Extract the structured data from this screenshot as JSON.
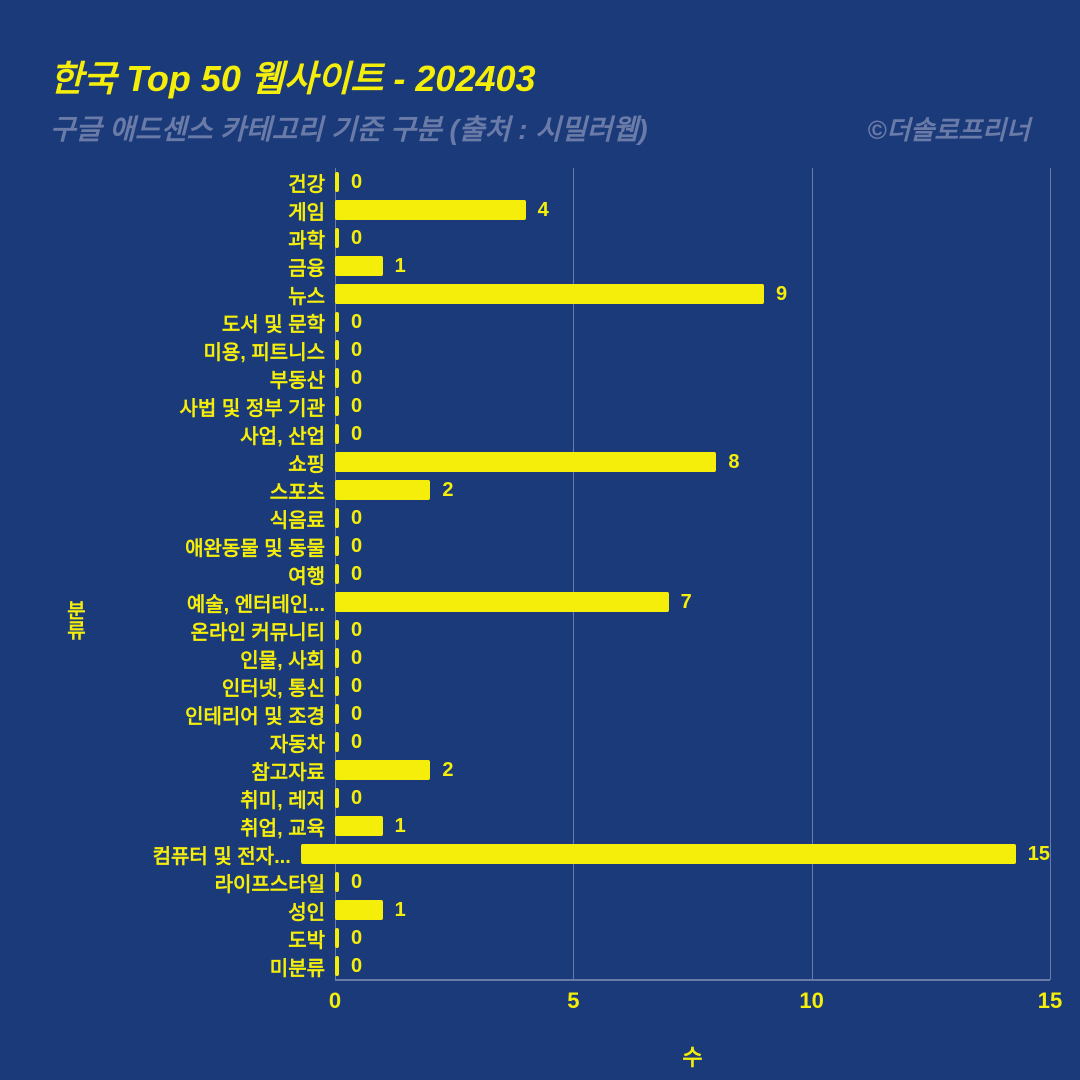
{
  "colors": {
    "background": "#1a3a7a",
    "bar": "#f5ed0a",
    "text_main": "#f5ed0a",
    "text_muted": "#6b7ba8",
    "grid": "#6b7ba8",
    "axis_line": "#6b7ba8"
  },
  "title": "한국 Top 50 웹사이트 - 202403",
  "subtitle": "구글 애드센스 카테고리 기준 구분 (출처 : 시밀러웹)",
  "credit": "©더솔로프리너",
  "chart": {
    "type": "bar-horizontal",
    "y_axis_title": "분류",
    "x_axis_title": "수",
    "xlim": [
      0,
      15
    ],
    "xticks": [
      0,
      5,
      10,
      15
    ],
    "bar_color": "#f5ed0a",
    "value_label_color": "#f5ed0a",
    "category_label_color": "#f5ed0a",
    "axis_label_color": "#f5ed0a",
    "grid_color": "#6b7ba8",
    "label_fontsize": 20,
    "value_fontsize": 20,
    "categories": [
      {
        "label": "건강",
        "value": 0
      },
      {
        "label": "게임",
        "value": 4
      },
      {
        "label": "과학",
        "value": 0
      },
      {
        "label": "금융",
        "value": 1
      },
      {
        "label": "뉴스",
        "value": 9
      },
      {
        "label": "도서 및 문학",
        "value": 0
      },
      {
        "label": "미용, 피트니스",
        "value": 0
      },
      {
        "label": "부동산",
        "value": 0
      },
      {
        "label": "사법 및 정부 기관",
        "value": 0
      },
      {
        "label": "사업, 산업",
        "value": 0
      },
      {
        "label": "쇼핑",
        "value": 8
      },
      {
        "label": "스포츠",
        "value": 2
      },
      {
        "label": "식음료",
        "value": 0
      },
      {
        "label": "애완동물 및 동물",
        "value": 0
      },
      {
        "label": "여행",
        "value": 0
      },
      {
        "label": "예술, 엔터테인...",
        "value": 7
      },
      {
        "label": "온라인 커뮤니티",
        "value": 0
      },
      {
        "label": "인물, 사회",
        "value": 0
      },
      {
        "label": "인터넷, 통신",
        "value": 0
      },
      {
        "label": "인테리어 및 조경",
        "value": 0
      },
      {
        "label": "자동차",
        "value": 0
      },
      {
        "label": "참고자료",
        "value": 2
      },
      {
        "label": "취미, 레저",
        "value": 0
      },
      {
        "label": "취업, 교육",
        "value": 1
      },
      {
        "label": "컴퓨터 및 전자...",
        "value": 15
      },
      {
        "label": "라이프스타일",
        "value": 0
      },
      {
        "label": "성인",
        "value": 1
      },
      {
        "label": "도박",
        "value": 0
      },
      {
        "label": "미분류",
        "value": 0
      }
    ]
  }
}
